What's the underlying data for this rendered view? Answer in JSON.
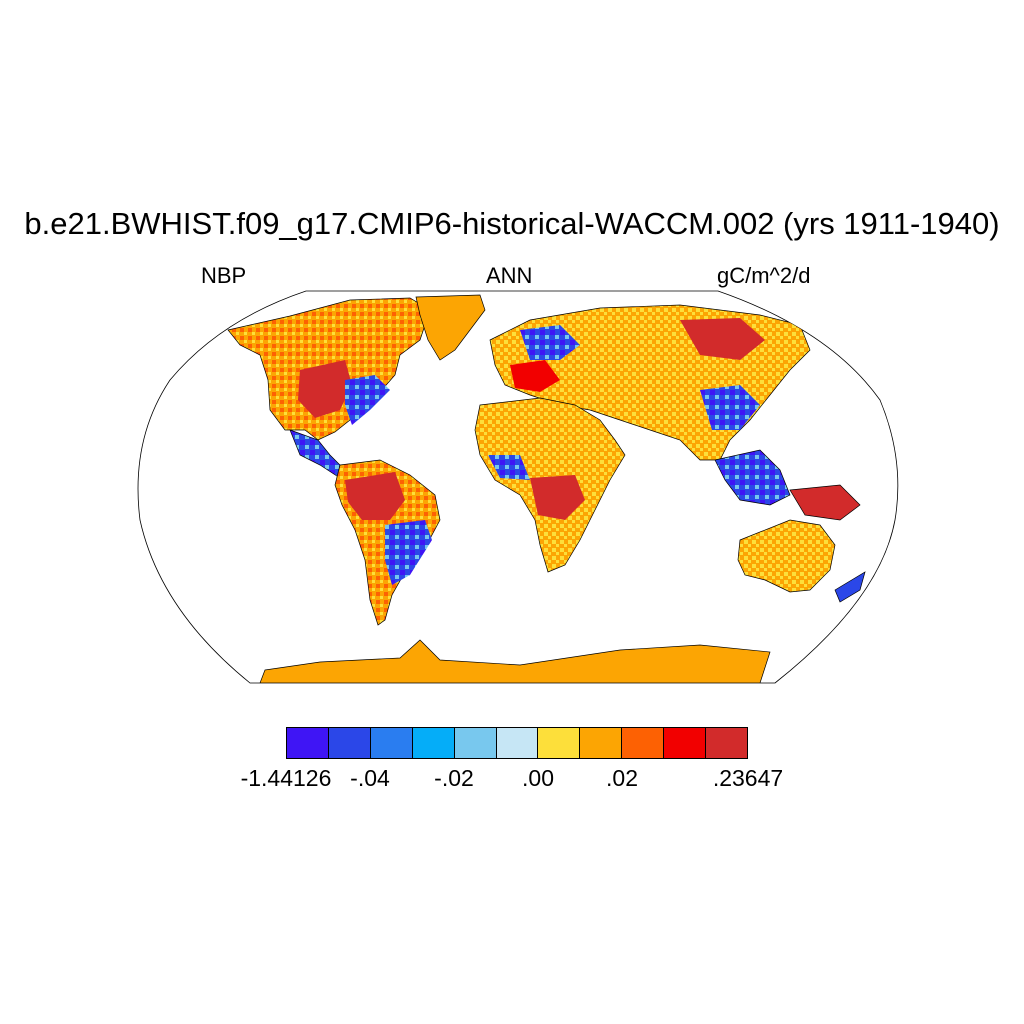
{
  "title": "b.e21.BWHIST.f09_g17.CMIP6-historical-WACCM.002 (yrs 1911-1940)",
  "left_label": "NBP",
  "center_label": "ANN",
  "right_label": "gC/m^2/d",
  "projection": "Robinson",
  "colors": {
    "ocean": "#ffffff",
    "outline": "#000000"
  },
  "colorbar": {
    "colors": [
      "#3f15f5",
      "#2b47e8",
      "#2a7df0",
      "#05adf8",
      "#78c8ee",
      "#c6e6f5",
      "#fddf3a",
      "#fca503",
      "#fd6103",
      "#f20000",
      "#d22b2b"
    ],
    "tick_labels": [
      "-1.44126",
      "-.04",
      "-.02",
      ".00",
      ".02",
      ".23647"
    ]
  }
}
